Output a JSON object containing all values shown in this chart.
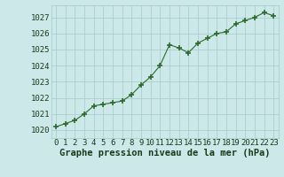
{
  "x": [
    0,
    1,
    2,
    3,
    4,
    5,
    6,
    7,
    8,
    9,
    10,
    11,
    12,
    13,
    14,
    15,
    16,
    17,
    18,
    19,
    20,
    21,
    22,
    23
  ],
  "y": [
    1020.2,
    1020.4,
    1020.6,
    1021.0,
    1021.5,
    1021.6,
    1021.7,
    1021.8,
    1022.2,
    1022.8,
    1023.3,
    1024.0,
    1025.3,
    1025.1,
    1024.8,
    1025.4,
    1025.7,
    1026.0,
    1026.1,
    1026.6,
    1026.8,
    1027.0,
    1027.3,
    1027.1
  ],
  "line_color": "#2d6a2d",
  "marker": "+",
  "marker_size": 5,
  "bg_color": "#cce8e8",
  "grid_color": "#aacece",
  "xlabel": "Graphe pression niveau de la mer (hPa)",
  "xlabel_fontsize": 7.5,
  "xlabel_color": "#1a3a1a",
  "tick_label_color": "#1a3a1a",
  "tick_fontsize": 6.5,
  "ylim": [
    1019.5,
    1027.75
  ],
  "yticks": [
    1020,
    1021,
    1022,
    1023,
    1024,
    1025,
    1026,
    1027
  ],
  "xlim": [
    -0.5,
    23.5
  ],
  "xticks": [
    0,
    1,
    2,
    3,
    4,
    5,
    6,
    7,
    8,
    9,
    10,
    11,
    12,
    13,
    14,
    15,
    16,
    17,
    18,
    19,
    20,
    21,
    22,
    23
  ]
}
